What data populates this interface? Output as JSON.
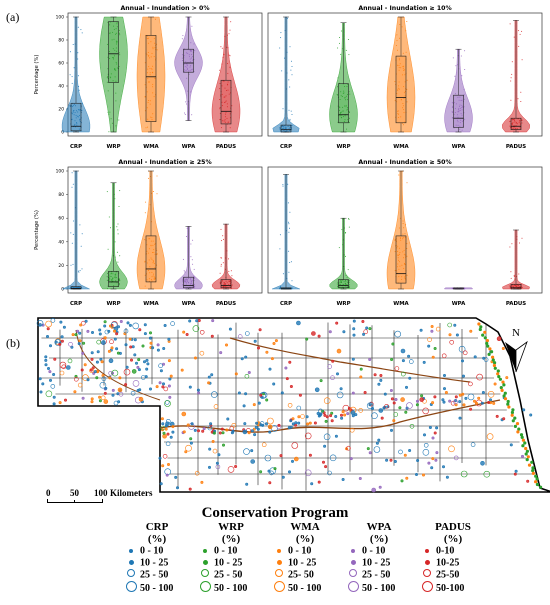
{
  "panel_labels": {
    "a": "(a)",
    "b": "(b)"
  },
  "colors": {
    "CRP": "#1f77b4",
    "WRP": "#2ca02c",
    "WMA": "#ff7f0e",
    "WPA": "#9467bd",
    "PADUS": "#d62728"
  },
  "chart_data": [
    {
      "type": "violin",
      "title": "Annual - Inundation > 0%",
      "ylabel": "Percentage (%)",
      "ylim": [
        0,
        100
      ],
      "yticks": [
        "0",
        "20",
        "40",
        "60",
        "80",
        "100"
      ],
      "categories": [
        "CRP",
        "WRP",
        "WMA",
        "WPA",
        "PADUS"
      ],
      "box": [
        {
          "q1": 1,
          "median": 5,
          "q3": 25,
          "lo": 0,
          "hi": 100
        },
        {
          "q1": 43,
          "median": 68,
          "q3": 96,
          "lo": 0,
          "hi": 100
        },
        {
          "q1": 9,
          "median": 48,
          "q3": 84,
          "lo": 0,
          "hi": 100
        },
        {
          "q1": 52,
          "median": 60,
          "q3": 72,
          "lo": 10,
          "hi": 100
        },
        {
          "q1": 7,
          "median": 18,
          "q3": 45,
          "lo": 0,
          "hi": 100
        }
      ]
    },
    {
      "type": "violin",
      "title": "Annual - Inundation ≥ 10%",
      "ylabel": "",
      "ylim": [
        0,
        100
      ],
      "yticks": [],
      "categories": [
        "CRP",
        "WRP",
        "WMA",
        "WPA",
        "PADUS"
      ],
      "box": [
        {
          "q1": 0,
          "median": 2,
          "q3": 6,
          "lo": 0,
          "hi": 100
        },
        {
          "q1": 8,
          "median": 15,
          "q3": 42,
          "lo": 0,
          "hi": 95
        },
        {
          "q1": 8,
          "median": 30,
          "q3": 66,
          "lo": 0,
          "hi": 100
        },
        {
          "q1": 4,
          "median": 12,
          "q3": 32,
          "lo": 0,
          "hi": 72
        },
        {
          "q1": 2,
          "median": 5,
          "q3": 12,
          "lo": 0,
          "hi": 97
        }
      ]
    },
    {
      "type": "violin",
      "title": "Annual - Inundation ≥ 25%",
      "ylabel": "Percentage (%)",
      "ylim": [
        0,
        100
      ],
      "yticks": [
        "0",
        "20",
        "40",
        "60",
        "80",
        "100"
      ],
      "categories": [
        "CRP",
        "WRP",
        "WMA",
        "WPA",
        "PADUS"
      ],
      "box": [
        {
          "q1": 0,
          "median": 0.5,
          "q3": 2,
          "lo": 0,
          "hi": 100
        },
        {
          "q1": 2,
          "median": 6,
          "q3": 15,
          "lo": 0,
          "hi": 90
        },
        {
          "q1": 6,
          "median": 17,
          "q3": 45,
          "lo": 0,
          "hi": 100
        },
        {
          "q1": 1,
          "median": 3,
          "q3": 10,
          "lo": 0,
          "hi": 53
        },
        {
          "q1": 1,
          "median": 3,
          "q3": 8,
          "lo": 0,
          "hi": 55
        }
      ]
    },
    {
      "type": "violin",
      "title": "Annual - Inundation ≥ 50%",
      "ylabel": "",
      "ylim": [
        0,
        100
      ],
      "yticks": [],
      "categories": [
        "CRP",
        "WRP",
        "WMA",
        "WPA",
        "PADUS"
      ],
      "box": [
        {
          "q1": 0,
          "median": 0.2,
          "q3": 1,
          "lo": 0,
          "hi": 97
        },
        {
          "q1": 1,
          "median": 3,
          "q3": 8,
          "lo": 0,
          "hi": 60
        },
        {
          "q1": 5,
          "median": 13,
          "q3": 45,
          "lo": 0,
          "hi": 100
        },
        {
          "q1": 0,
          "median": 0.2,
          "q3": 1,
          "lo": 0,
          "hi": 1
        },
        {
          "q1": 0,
          "median": 1,
          "q3": 4,
          "lo": 0,
          "hi": 50
        }
      ]
    }
  ],
  "map": {
    "north_label": "N",
    "scale_ticks": [
      "0",
      "50",
      "100"
    ],
    "scale_unit": "Kilometers"
  },
  "legend": {
    "title": "Conservation Program",
    "unit": "(%)",
    "programs": [
      {
        "name": "CRP",
        "classes": [
          "0 - 10",
          "10 - 25",
          "25 - 50",
          "50 - 100"
        ]
      },
      {
        "name": "WRP",
        "classes": [
          "0 - 10",
          "10 - 25",
          "25 - 50",
          "50 - 100"
        ]
      },
      {
        "name": "WMA",
        "classes": [
          "0 - 10",
          "10 - 25",
          "25- 50",
          "50 - 100"
        ]
      },
      {
        "name": "WPA",
        "classes": [
          "0 - 10",
          "10 - 25",
          "25 - 50",
          "50 - 100"
        ]
      },
      {
        "name": "PADUS",
        "classes": [
          "0-10",
          "10-25",
          "25-50",
          "50-100"
        ]
      }
    ]
  }
}
